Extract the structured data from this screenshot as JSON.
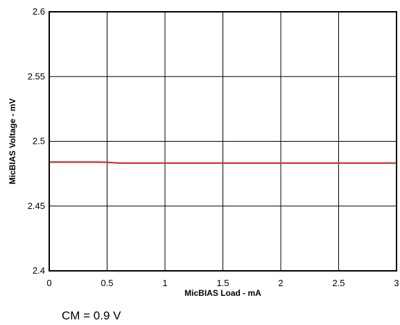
{
  "chart_data": {
    "type": "line",
    "title": "",
    "xlabel": "MicBIAS Load - mA",
    "ylabel": "MicBIAS Voltage - mV",
    "xlim": [
      0,
      3
    ],
    "ylim": [
      2.4,
      2.6
    ],
    "x_ticks": [
      0,
      0.5,
      1,
      1.5,
      2,
      2.5,
      3
    ],
    "x_tick_labels": [
      "0",
      "0.5",
      "1",
      "1.5",
      "2",
      "2.5",
      "3"
    ],
    "y_ticks": [
      2.4,
      2.45,
      2.5,
      2.55,
      2.6
    ],
    "y_tick_labels": [
      "2.4",
      "2.45",
      "2.5",
      "2.55",
      "2.6"
    ],
    "grid": true,
    "legend": "none",
    "series": [
      {
        "color": "#d62728",
        "x": [
          0,
          0.25,
          0.42,
          0.5,
          0.6,
          1,
          1.5,
          2,
          2.5,
          3
        ],
        "y": [
          2.484,
          2.484,
          2.484,
          2.4838,
          2.4832,
          2.4832,
          2.4832,
          2.4832,
          2.4832,
          2.4832
        ]
      }
    ],
    "annotations": [
      {
        "text": "CM = 0.9 V"
      }
    ]
  }
}
